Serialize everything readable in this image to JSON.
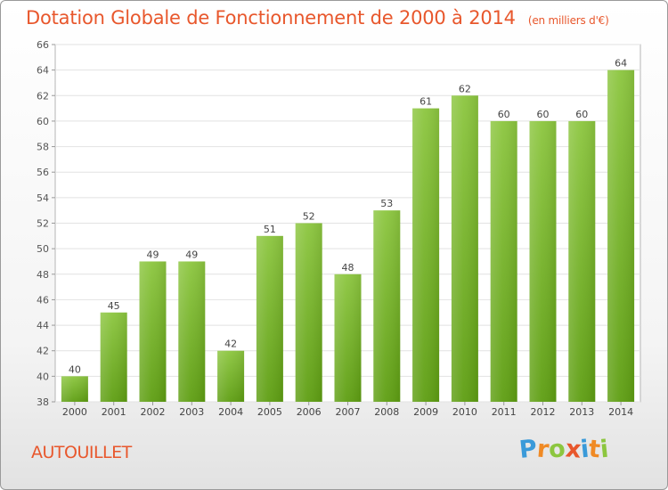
{
  "chart_data": {
    "type": "bar",
    "title": "Dotation Globale de Fonctionnement de 2000 à 2014",
    "subtitle": "(en milliers d'€)",
    "categories": [
      "2000",
      "2001",
      "2002",
      "2003",
      "2004",
      "2005",
      "2006",
      "2007",
      "2008",
      "2009",
      "2010",
      "2011",
      "2012",
      "2013",
      "2014"
    ],
    "values": [
      40,
      45,
      49,
      49,
      42,
      51,
      52,
      48,
      53,
      61,
      62,
      60,
      60,
      60,
      64
    ],
    "ylim": [
      38,
      66
    ],
    "yticks": [
      38,
      40,
      42,
      44,
      46,
      48,
      50,
      52,
      54,
      56,
      58,
      60,
      62,
      64,
      66
    ],
    "grid": true,
    "bar_color": "#8cc63f",
    "bar_color_dark": "#5e9e12"
  },
  "place_name": "AUTOUILLET",
  "logo": {
    "letters": [
      "P",
      "r",
      "o",
      "x",
      "i",
      "t",
      "i"
    ],
    "colors": [
      "#3a9ad9",
      "#f08a24",
      "#8cc63f",
      "#e8572c",
      "#3a9ad9",
      "#f08a24",
      "#8cc63f"
    ]
  },
  "colors": {
    "accent": "#e8572c"
  }
}
